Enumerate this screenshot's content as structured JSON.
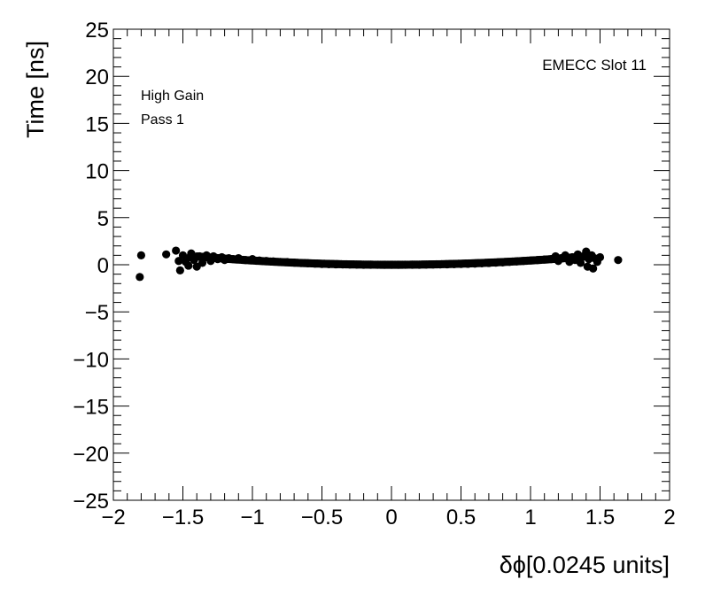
{
  "chart_data": {
    "type": "scatter",
    "xlabel": "δϕ[0.0245 units]",
    "ylabel": "Time [ns]",
    "xlim": [
      -2,
      2
    ],
    "ylim": [
      -25,
      25
    ],
    "x_ticks": [
      -2,
      -1.5,
      -1,
      -0.5,
      0,
      0.5,
      1,
      1.5,
      2
    ],
    "x_tick_labels": [
      "−2",
      "−1.5",
      "−1",
      "−0.5",
      "0",
      "0.5",
      "1",
      "1.5",
      "2"
    ],
    "y_ticks": [
      -25,
      -20,
      -15,
      -10,
      -5,
      0,
      5,
      10,
      15,
      20,
      25
    ],
    "y_tick_labels": [
      "−25",
      "−20",
      "−15",
      "−10",
      "−5",
      "0",
      "5",
      "10",
      "15",
      "20",
      "25"
    ],
    "grid": false,
    "annotations": [
      "High Gain",
      "Pass 1",
      "EMECC Slot 11"
    ],
    "marker_color": "#000000",
    "series": [
      {
        "points": [
          [
            -1.8,
            1.0
          ],
          [
            -1.81,
            -1.3
          ],
          [
            -1.62,
            1.1
          ],
          [
            -1.55,
            1.5
          ],
          [
            -1.53,
            0.4
          ],
          [
            -1.52,
            -0.6
          ],
          [
            -1.5,
            1.0
          ],
          [
            -1.48,
            0.3
          ],
          [
            -1.46,
            -0.1
          ],
          [
            -1.45,
            0.8
          ],
          [
            -1.44,
            1.2
          ],
          [
            -1.42,
            0.5
          ],
          [
            -1.4,
            -0.2
          ],
          [
            -1.38,
            0.9
          ],
          [
            -1.36,
            0.2
          ],
          [
            -1.35,
            0.7
          ],
          [
            -1.33,
            1.0
          ],
          [
            -1.3,
            0.4
          ],
          [
            -1.28,
            0.9
          ],
          [
            -1.25,
            0.6
          ],
          [
            -1.22,
            0.8
          ],
          [
            -1.2,
            0.5
          ],
          [
            -1.17,
            0.7
          ],
          [
            -1.14,
            0.6
          ],
          [
            -1.1,
            0.7
          ],
          [
            -1.05,
            0.5
          ],
          [
            -1.0,
            0.6
          ],
          [
            -0.95,
            0.45
          ],
          [
            -0.9,
            0.4
          ],
          [
            -0.85,
            0.35
          ],
          [
            -0.8,
            0.3
          ],
          [
            -0.75,
            0.28
          ],
          [
            -0.7,
            0.22
          ],
          [
            -0.65,
            0.18
          ],
          [
            -0.6,
            0.15
          ],
          [
            -0.55,
            0.12
          ],
          [
            -0.5,
            0.08
          ],
          [
            -0.45,
            0.06
          ],
          [
            -0.4,
            0.04
          ],
          [
            -0.35,
            0.03
          ],
          [
            -0.3,
            0.02
          ],
          [
            -0.25,
            0.01
          ],
          [
            -0.2,
            0.0
          ],
          [
            -0.15,
            0.0
          ],
          [
            -0.1,
            0.0
          ],
          [
            -0.05,
            0.0
          ],
          [
            0.0,
            0.0
          ],
          [
            0.05,
            0.0
          ],
          [
            0.1,
            0.0
          ],
          [
            0.15,
            0.0
          ],
          [
            0.2,
            0.0
          ],
          [
            0.25,
            0.01
          ],
          [
            0.3,
            0.02
          ],
          [
            0.35,
            0.03
          ],
          [
            0.4,
            0.04
          ],
          [
            0.45,
            0.06
          ],
          [
            0.5,
            0.08
          ],
          [
            0.55,
            0.1
          ],
          [
            0.6,
            0.12
          ],
          [
            0.65,
            0.15
          ],
          [
            0.7,
            0.18
          ],
          [
            0.75,
            0.22
          ],
          [
            0.8,
            0.25
          ],
          [
            0.85,
            0.3
          ],
          [
            0.9,
            0.35
          ],
          [
            0.95,
            0.4
          ],
          [
            1.0,
            0.45
          ],
          [
            1.05,
            0.5
          ],
          [
            1.1,
            0.55
          ],
          [
            1.15,
            0.6
          ],
          [
            1.18,
            0.9
          ],
          [
            1.2,
            0.4
          ],
          [
            1.22,
            0.7
          ],
          [
            1.25,
            1.0
          ],
          [
            1.28,
            0.3
          ],
          [
            1.3,
            0.8
          ],
          [
            1.32,
            0.5
          ],
          [
            1.34,
            1.1
          ],
          [
            1.36,
            0.2
          ],
          [
            1.38,
            0.9
          ],
          [
            1.4,
            1.4
          ],
          [
            1.41,
            -0.2
          ],
          [
            1.42,
            0.6
          ],
          [
            1.44,
            1.0
          ],
          [
            1.45,
            -0.4
          ],
          [
            1.46,
            0.7
          ],
          [
            1.48,
            0.3
          ],
          [
            1.5,
            0.8
          ],
          [
            1.63,
            0.5
          ]
        ]
      }
    ]
  }
}
